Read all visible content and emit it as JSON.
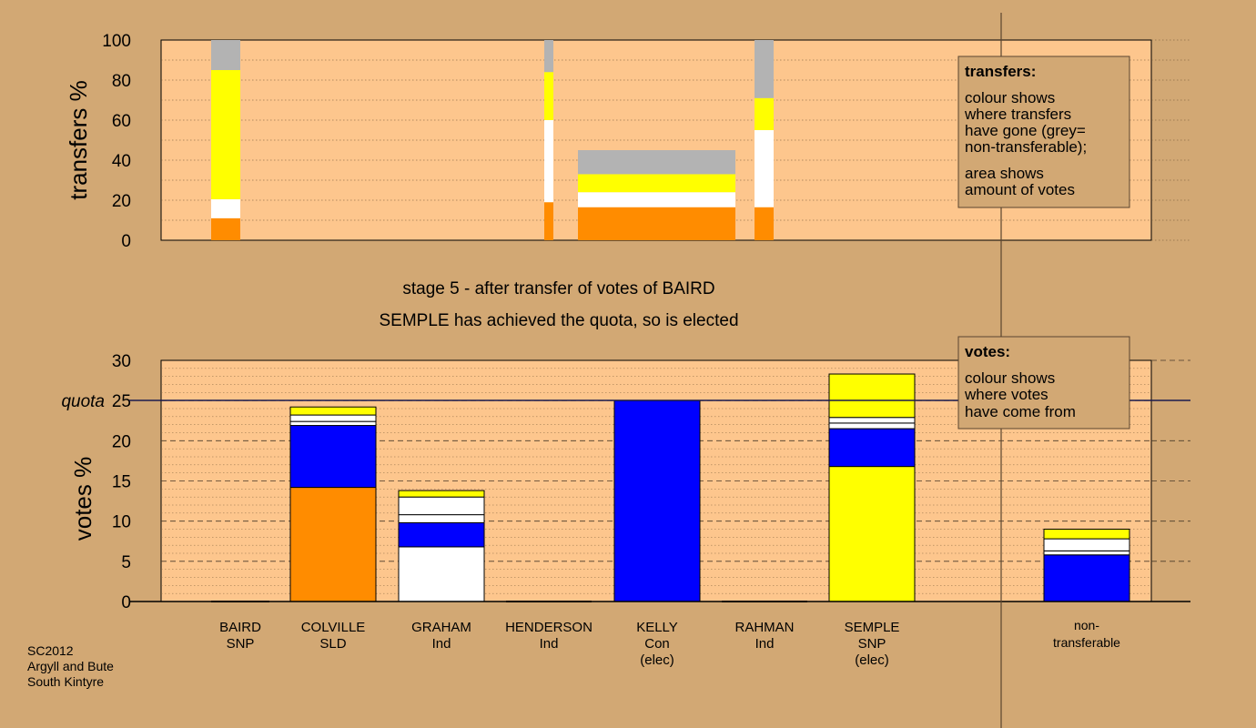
{
  "colors": {
    "background": "#d2a874",
    "plot_area": "#fdc68d",
    "SNP": "#ffff00",
    "SLD": "#ff8c00",
    "Ind": "#ffffff",
    "Con": "#0000ff",
    "non_transferable": "#b3b3b3",
    "legend_box": "#d2a874"
  },
  "chart_data": [
    {
      "type": "bar",
      "panel": "transfers",
      "ylabel": "transfers %",
      "ylim": [
        0,
        100
      ],
      "yticks": [
        0,
        20,
        40,
        60,
        80,
        100
      ],
      "grid": true,
      "bars": [
        {
          "candidate": "BAIRD",
          "segments": [
            {
              "party": "SLD",
              "from": 0,
              "to": 11
            },
            {
              "party": "Ind",
              "from": 11,
              "to": 20.5
            },
            {
              "party": "SNP",
              "from": 20.5,
              "to": 85
            },
            {
              "party": "non_transferable",
              "from": 85,
              "to": 100
            }
          ]
        },
        {
          "candidate": "HENDERSON",
          "segments": [
            {
              "party": "SLD",
              "from": 0,
              "to": 19
            },
            {
              "party": "Ind",
              "from": 19,
              "to": 60
            },
            {
              "party": "SNP",
              "from": 60,
              "to": 84
            },
            {
              "party": "non_transferable",
              "from": 84,
              "to": 100
            }
          ]
        },
        {
          "candidate": "KELLY",
          "segments": [
            {
              "party": "SLD",
              "from": 0,
              "to": 16.5
            },
            {
              "party": "Ind",
              "from": 16.5,
              "to": 24
            },
            {
              "party": "SNP",
              "from": 24,
              "to": 33
            },
            {
              "party": "non_transferable",
              "from": 33,
              "to": 45
            }
          ]
        },
        {
          "candidate": "RAHMAN",
          "segments": [
            {
              "party": "SLD",
              "from": 0,
              "to": 16.5
            },
            {
              "party": "Ind",
              "from": 16.5,
              "to": 55
            },
            {
              "party": "SNP",
              "from": 55,
              "to": 71
            },
            {
              "party": "non_transferable",
              "from": 71,
              "to": 100
            }
          ]
        }
      ],
      "legend": {
        "title": "transfers:",
        "lines1": [
          "colour shows",
          "where transfers",
          "have gone (grey=",
          "non-transferable);"
        ],
        "lines2": [
          "area shows",
          "amount of votes"
        ]
      }
    },
    {
      "type": "bar",
      "panel": "votes",
      "ylabel": "votes %",
      "ylim": [
        0,
        30
      ],
      "yticks": [
        0,
        5,
        10,
        15,
        20,
        25,
        30
      ],
      "grid": true,
      "quota": 25,
      "quota_label": "quota",
      "candidates": [
        {
          "name": "BAIRD",
          "party": "SNP",
          "note": "",
          "segments": []
        },
        {
          "name": "COLVILLE",
          "party": "SLD",
          "note": "",
          "segments": [
            {
              "party": "SLD",
              "from": 0,
              "to": 14.2
            },
            {
              "party": "Con",
              "from": 14.2,
              "to": 21.9
            },
            {
              "party": "Ind",
              "from": 21.9,
              "to": 22.4
            },
            {
              "party": "Ind",
              "from": 22.4,
              "to": 23.2
            },
            {
              "party": "SNP",
              "from": 23.2,
              "to": 24.2
            }
          ]
        },
        {
          "name": "GRAHAM",
          "party": "Ind",
          "note": "",
          "segments": [
            {
              "party": "Ind",
              "from": 0,
              "to": 6.8
            },
            {
              "party": "Con",
              "from": 6.8,
              "to": 9.8
            },
            {
              "party": "Ind",
              "from": 9.8,
              "to": 10.8
            },
            {
              "party": "Ind",
              "from": 10.8,
              "to": 13.0
            },
            {
              "party": "SNP",
              "from": 13.0,
              "to": 13.8
            }
          ]
        },
        {
          "name": "HENDERSON",
          "party": "Ind",
          "note": "",
          "segments": []
        },
        {
          "name": "KELLY",
          "party": "Con",
          "note": "(elec)",
          "segments": [
            {
              "party": "Con",
              "from": 0,
              "to": 25
            }
          ]
        },
        {
          "name": "RAHMAN",
          "party": "Ind",
          "note": "",
          "segments": []
        },
        {
          "name": "SEMPLE",
          "party": "SNP",
          "note": "(elec)",
          "segments": [
            {
              "party": "SNP",
              "from": 0,
              "to": 16.8
            },
            {
              "party": "Con",
              "from": 16.8,
              "to": 21.5
            },
            {
              "party": "Ind",
              "from": 21.5,
              "to": 22.2
            },
            {
              "party": "Ind",
              "from": 22.2,
              "to": 22.9
            },
            {
              "party": "SNP",
              "from": 22.9,
              "to": 28.3
            }
          ]
        }
      ],
      "non_transferable": {
        "line1": "non-",
        "line2": "transferable",
        "segments": [
          {
            "party": "Con",
            "from": 0,
            "to": 5.8
          },
          {
            "party": "Ind",
            "from": 5.8,
            "to": 6.3
          },
          {
            "party": "Ind",
            "from": 6.3,
            "to": 7.8
          },
          {
            "party": "SNP",
            "from": 7.8,
            "to": 9.0
          }
        ]
      },
      "legend": {
        "title": "votes:",
        "lines": [
          "colour shows",
          "where votes",
          "have come from"
        ]
      }
    }
  ],
  "stage_text": {
    "line1": "stage 5 - after transfer of votes of BAIRD",
    "line2": "SEMPLE has achieved the quota, so is elected"
  },
  "footer": {
    "line1": "SC2012",
    "line2": "Argyll and Bute",
    "line3": "South Kintyre"
  }
}
